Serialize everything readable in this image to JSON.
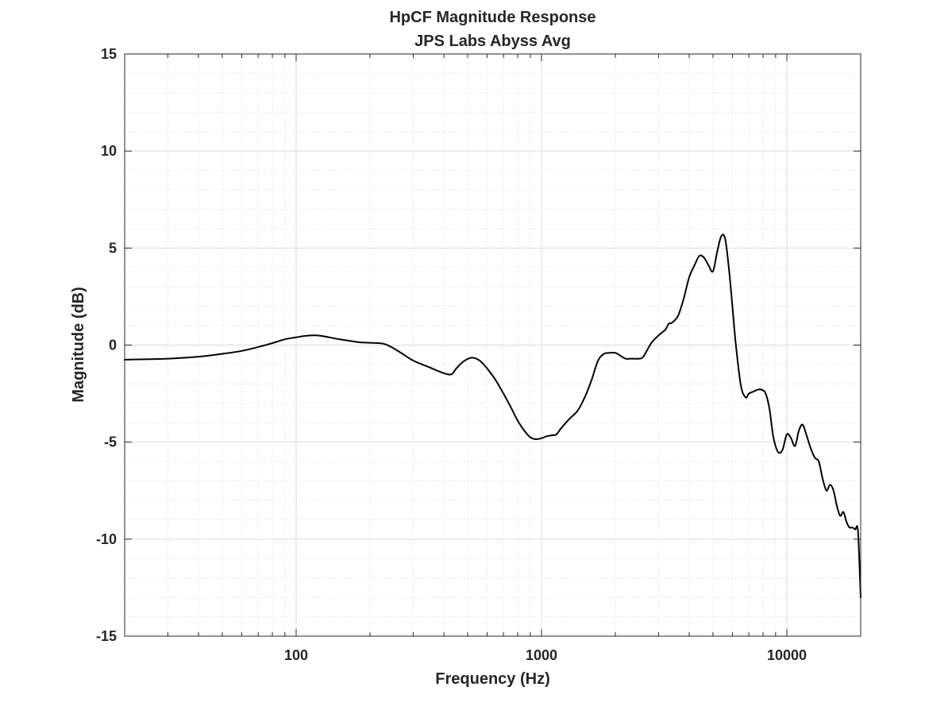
{
  "chart_data": {
    "type": "line",
    "title": "HpCF Magnitude Response",
    "subtitle": "JPS Labs Abyss Avg",
    "xlabel": "Frequency (Hz)",
    "ylabel": "Magnitude (dB)",
    "xscale": "log",
    "xlim": [
      20,
      20000
    ],
    "ylim": [
      -15,
      15
    ],
    "xticks": [
      100,
      1000,
      10000
    ],
    "xtick_labels": [
      "100",
      "1000",
      "10000"
    ],
    "yticks": [
      -15,
      -10,
      -5,
      0,
      5,
      10,
      15
    ],
    "ytick_labels": [
      "-15",
      "-10",
      "-5",
      "0",
      "5",
      "10",
      "15"
    ],
    "grid": true,
    "minor_grid": true,
    "colors": {
      "line": "#000000",
      "grid": "#dcdcdc",
      "axes": "#262626"
    },
    "series": [
      {
        "x": [
          20,
          30,
          40,
          50,
          60,
          70,
          80,
          90,
          100,
          110,
          120,
          130,
          150,
          180,
          200,
          230,
          260,
          300,
          350,
          400,
          430,
          450,
          480,
          520,
          560,
          600,
          650,
          700,
          750,
          800,
          850,
          900,
          950,
          1000,
          1050,
          1100,
          1150,
          1200,
          1300,
          1400,
          1500,
          1600,
          1700,
          1800,
          1900,
          2000,
          2100,
          2200,
          2300,
          2400,
          2500,
          2600,
          2800,
          3000,
          3200,
          3300,
          3400,
          3600,
          3800,
          4000,
          4200,
          4400,
          4600,
          4800,
          5000,
          5200,
          5400,
          5600,
          5800,
          6000,
          6200,
          6500,
          6800,
          7000,
          7300,
          7600,
          7900,
          8200,
          8500,
          8800,
          9200,
          9600,
          10000,
          10400,
          10800,
          11200,
          11600,
          12000,
          12500,
          13000,
          13500,
          14000,
          14500,
          15000,
          15500,
          16000,
          16500,
          17000,
          17500,
          18000,
          18500,
          19000,
          19500,
          20000
        ],
        "y": [
          -0.75,
          -0.7,
          -0.6,
          -0.45,
          -0.3,
          -0.1,
          0.1,
          0.3,
          0.4,
          0.48,
          0.5,
          0.45,
          0.3,
          0.15,
          0.12,
          0.05,
          -0.3,
          -0.8,
          -1.15,
          -1.45,
          -1.5,
          -1.2,
          -0.85,
          -0.65,
          -0.8,
          -1.2,
          -1.8,
          -2.5,
          -3.2,
          -3.9,
          -4.4,
          -4.75,
          -4.85,
          -4.8,
          -4.7,
          -4.65,
          -4.6,
          -4.3,
          -3.8,
          -3.4,
          -2.7,
          -1.8,
          -0.8,
          -0.45,
          -0.4,
          -0.4,
          -0.55,
          -0.7,
          -0.7,
          -0.7,
          -0.7,
          -0.6,
          0.1,
          0.5,
          0.8,
          1.1,
          1.15,
          1.5,
          2.4,
          3.5,
          4.1,
          4.6,
          4.5,
          4.1,
          3.8,
          4.8,
          5.6,
          5.5,
          4.0,
          2.0,
          0.0,
          -2.1,
          -2.7,
          -2.5,
          -2.4,
          -2.3,
          -2.3,
          -2.5,
          -3.3,
          -4.7,
          -5.5,
          -5.4,
          -4.6,
          -4.8,
          -5.2,
          -4.4,
          -4.1,
          -4.6,
          -5.3,
          -5.8,
          -6.0,
          -6.9,
          -7.5,
          -7.2,
          -7.5,
          -8.3,
          -8.8,
          -8.6,
          -9.1,
          -9.4,
          -9.4,
          -9.5,
          -9.6,
          -13.0
        ]
      }
    ]
  }
}
